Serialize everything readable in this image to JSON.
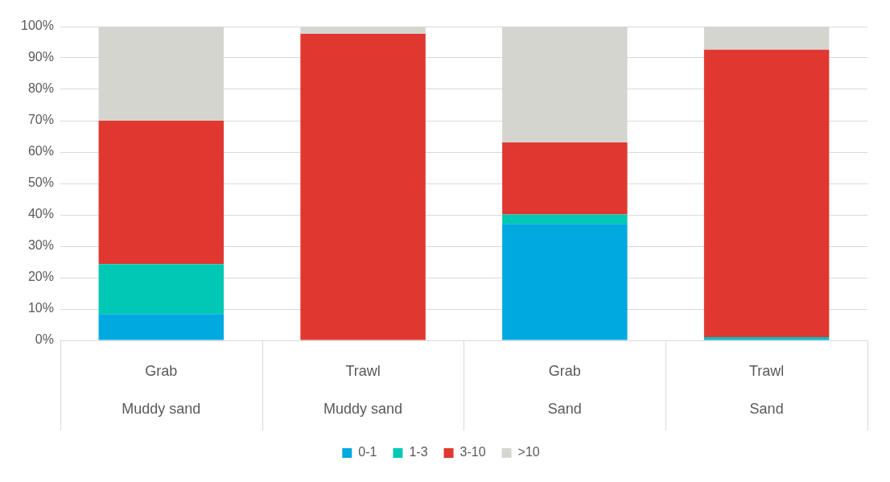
{
  "chart_data": {
    "type": "bar",
    "stacked": true,
    "categories": [
      "Grab\nMuddy sand",
      "Trawl\nMuddy sand",
      "Grab\nSand",
      "Trawl\nSand"
    ],
    "series": [
      {
        "name": "0-1",
        "color": "#00a9e0",
        "values": [
          8.4,
          0,
          37.1,
          0.5
        ]
      },
      {
        "name": "1-3",
        "color": "#00c8b4",
        "values": [
          15.9,
          null,
          3,
          0.5
        ]
      },
      {
        "name": "3-10",
        "color": "#e03830",
        "values": [
          45.7,
          97.7,
          23,
          91.6
        ]
      },
      {
        "name": ">10",
        "color": "#d5d5d0",
        "values": [
          30,
          2.3,
          36.9,
          7.4
        ]
      }
    ],
    "ylim": [
      0,
      100
    ],
    "yticks": [
      {
        "value": 0,
        "label": "0%"
      },
      {
        "value": 10,
        "label": "10%"
      },
      {
        "value": 20,
        "label": "20%"
      },
      {
        "value": 30,
        "label": "30%"
      },
      {
        "value": 40,
        "label": "40%"
      },
      {
        "value": 50,
        "label": "50%"
      },
      {
        "value": 60,
        "label": "60%"
      },
      {
        "value": 70,
        "label": "70%"
      },
      {
        "value": 80,
        "label": "80%"
      },
      {
        "value": 90,
        "label": "90%"
      },
      {
        "value": 100,
        "label": "100%"
      }
    ],
    "grid": "y",
    "legend": "bottom"
  }
}
